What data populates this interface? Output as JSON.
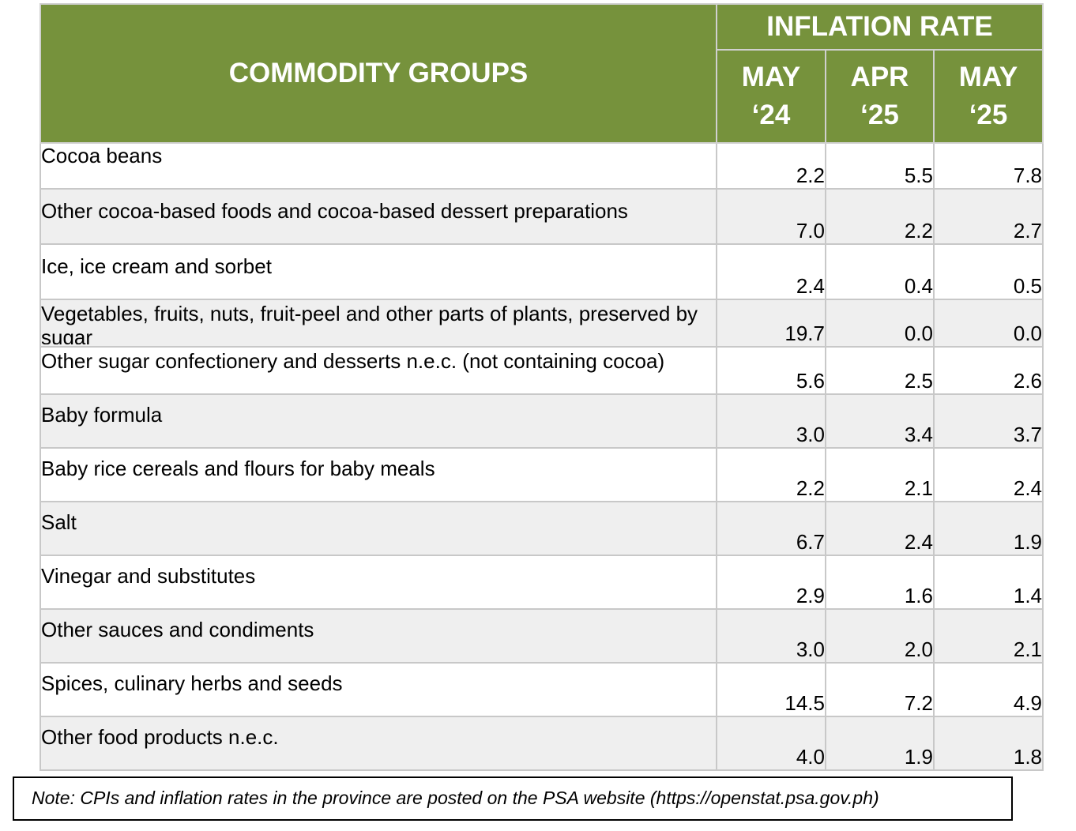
{
  "table": {
    "commodity_header": "COMMODITY GROUPS",
    "rate_header": "INFLATION RATE",
    "periods": [
      {
        "month": "MAY",
        "year": "‘24"
      },
      {
        "month": "APR",
        "year": "‘25"
      },
      {
        "month": "MAY",
        "year": "‘25"
      }
    ],
    "rows": [
      {
        "label": "Cocoa beans",
        "v1": "2.2",
        "v2": "5.5",
        "v3": "7.8"
      },
      {
        "label": "Other cocoa-based foods and cocoa-based dessert preparations",
        "v1": "7.0",
        "v2": "2.2",
        "v3": "2.7"
      },
      {
        "label": "Ice, ice cream and sorbet",
        "v1": "2.4",
        "v2": "0.4",
        "v3": "0.5"
      },
      {
        "label": "Vegetables, fruits, nuts, fruit-peel and other parts of plants, preserved by sugar",
        "v1": "19.7",
        "v2": "0.0",
        "v3": "0.0"
      },
      {
        "label": "Other sugar confectionery and desserts n.e.c. (not containing cocoa)",
        "v1": "5.6",
        "v2": "2.5",
        "v3": "2.6"
      },
      {
        "label": "Baby formula",
        "v1": "3.0",
        "v2": "3.4",
        "v3": "3.7"
      },
      {
        "label": "Baby rice cereals and flours for baby meals",
        "v1": "2.2",
        "v2": "2.1",
        "v3": "2.4"
      },
      {
        "label": "Salt",
        "v1": "6.7",
        "v2": "2.4",
        "v3": "1.9"
      },
      {
        "label": "Vinegar and substitutes",
        "v1": "2.9",
        "v2": "1.6",
        "v3": "1.4"
      },
      {
        "label": "Other sauces and condiments",
        "v1": "3.0",
        "v2": "2.0",
        "v3": "2.1"
      },
      {
        "label": "Spices, culinary herbs and seeds",
        "v1": "14.5",
        "v2": "7.2",
        "v3": "4.9"
      },
      {
        "label": "Other food products n.e.c.",
        "v1": "4.0",
        "v2": "1.9",
        "v3": "1.8"
      }
    ]
  },
  "note": "Note: CPIs and inflation rates in the province are posted on the PSA website (https://openstat.psa.gov.ph)",
  "colors": {
    "header_bg": "#76923c",
    "header_text": "#ffffff",
    "row_alt_bg": "#efefef",
    "border": "#c8c8c8"
  }
}
